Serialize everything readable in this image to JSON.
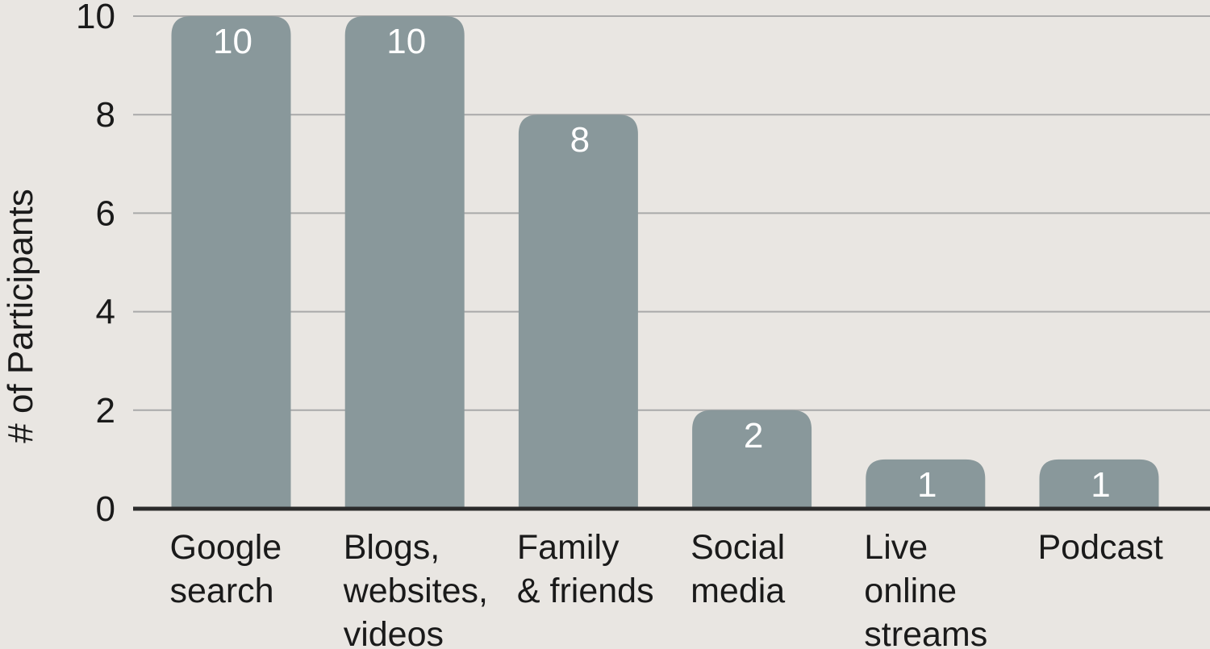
{
  "chart_data": {
    "type": "bar",
    "title": "",
    "xlabel": "",
    "ylabel": "# of Participants",
    "ylim": [
      0,
      10
    ],
    "yticks": [
      0,
      2,
      4,
      6,
      8,
      10
    ],
    "grid": true,
    "legend": "none",
    "categories": [
      [
        "Google",
        "search"
      ],
      [
        "Blogs,",
        "websites,",
        "videos"
      ],
      [
        "Family",
        "& friends"
      ],
      [
        "Social",
        "media"
      ],
      [
        "Live",
        "online",
        "streams"
      ],
      [
        "Podcast"
      ]
    ],
    "values": [
      10,
      10,
      8,
      2,
      1,
      1
    ],
    "data_labels": [
      "10",
      "10",
      "8",
      "2",
      "1",
      "1"
    ],
    "colors": {
      "background": "#e9e6e2",
      "bar": "#89989b",
      "gridline": "#a9a9a9",
      "baseline": "#2b2b2b",
      "bar_label": "#ffffff",
      "text": "#1a1a1a"
    }
  }
}
